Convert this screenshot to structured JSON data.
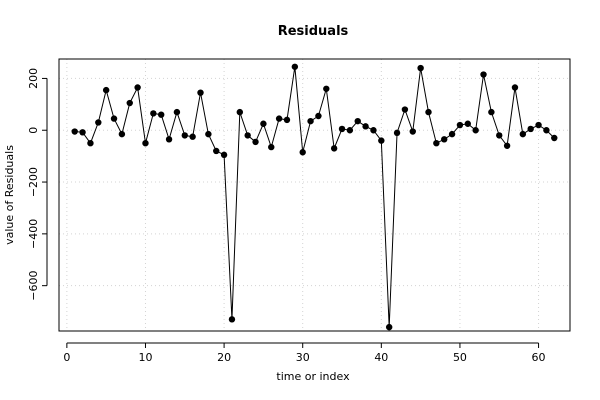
{
  "chart_data": {
    "type": "line",
    "title": "Residuals",
    "xlabel": "time or index",
    "ylabel": "value of Residuals",
    "xlim": [
      -1,
      64
    ],
    "ylim": [
      -775,
      275
    ],
    "x_ticks": [
      0,
      10,
      20,
      30,
      40,
      50,
      60
    ],
    "y_ticks": [
      -600,
      -400,
      -200,
      0,
      200
    ],
    "grid": true,
    "markers": "filled-circle",
    "colors": {
      "series": "#000000",
      "grid": "#d3d3d3"
    },
    "series": [
      {
        "x": [
          1,
          2,
          3,
          4,
          5,
          6,
          7,
          8,
          9,
          10,
          11,
          12,
          13,
          14,
          15,
          16,
          17,
          18,
          19,
          20,
          21,
          22,
          23,
          24,
          25,
          26,
          27,
          28,
          29,
          30,
          31,
          32,
          33,
          34,
          35,
          36,
          37,
          38,
          39,
          40,
          41,
          42,
          43,
          44,
          45,
          46,
          47,
          48,
          49,
          50,
          51,
          52,
          53,
          54,
          55,
          56,
          57,
          58,
          59,
          60,
          61,
          62
        ],
        "values": [
          -5,
          -8,
          -50,
          30,
          155,
          45,
          -15,
          105,
          165,
          -50,
          65,
          60,
          -35,
          70,
          -20,
          -25,
          145,
          -15,
          -80,
          -95,
          -730,
          70,
          -20,
          -45,
          25,
          -65,
          45,
          40,
          245,
          -85,
          35,
          55,
          160,
          -70,
          5,
          0,
          35,
          15,
          0,
          -40,
          -760,
          -10,
          80,
          -5,
          240,
          70,
          -50,
          -35,
          -15,
          20,
          25,
          0,
          215,
          70,
          -20,
          -60,
          165,
          -15,
          5,
          20,
          0,
          -30
        ]
      }
    ]
  }
}
